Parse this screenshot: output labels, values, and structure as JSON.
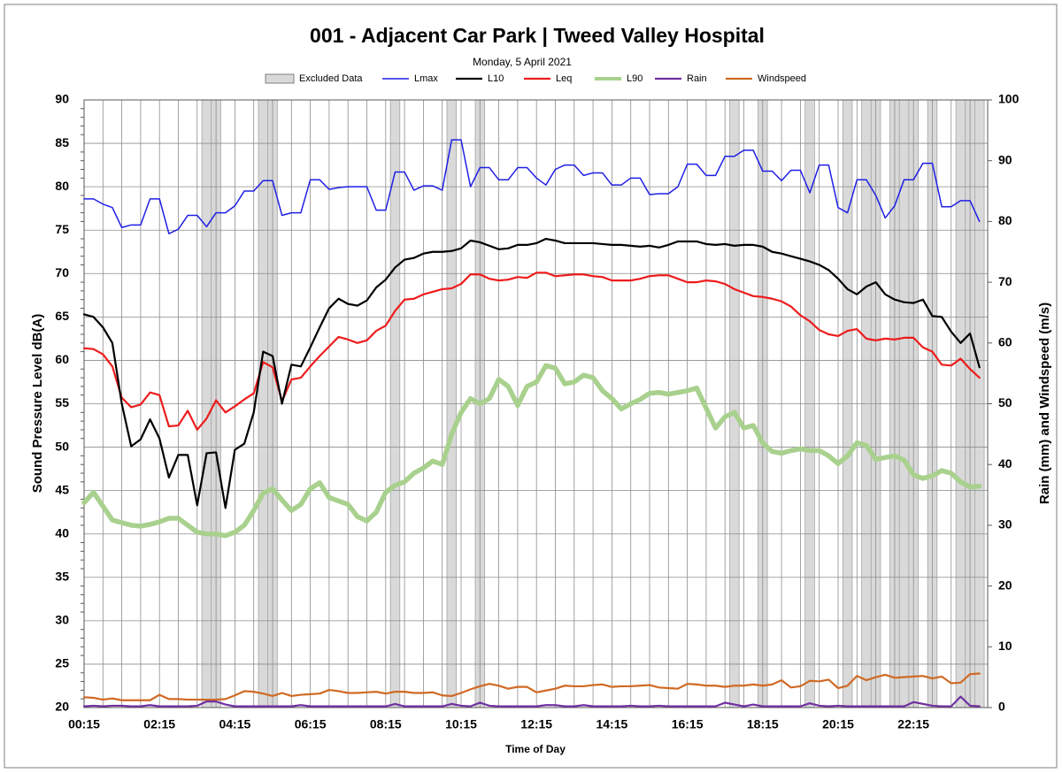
{
  "chart_data": {
    "type": "line",
    "title": "001 - Adjacent Car Park | Tweed Valley Hospital",
    "subtitle": "Monday, 5 April 2021",
    "x_label": "Time of Day",
    "y_label": "Sound Pressure Level dB(A)",
    "y2_label": "Rain (mm) and Windspeed (m/s)",
    "categories": [
      "00:15",
      null,
      null,
      null,
      null,
      null,
      null,
      null,
      "02:15",
      null,
      null,
      null,
      null,
      null,
      null,
      null,
      "04:15",
      null,
      null,
      null,
      null,
      null,
      null,
      null,
      "06:15",
      null,
      null,
      null,
      null,
      null,
      null,
      null,
      "08:15",
      null,
      null,
      null,
      null,
      null,
      null,
      null,
      "10:15",
      null,
      null,
      null,
      null,
      null,
      null,
      null,
      "12:15",
      null,
      null,
      null,
      null,
      null,
      null,
      null,
      "14:15",
      null,
      null,
      null,
      null,
      null,
      null,
      null,
      "16:15",
      null,
      null,
      null,
      null,
      null,
      null,
      null,
      "18:15",
      null,
      null,
      null,
      null,
      null,
      null,
      null,
      "20:15",
      null,
      null,
      null,
      null,
      null,
      null,
      null,
      "22:15",
      null,
      null,
      null,
      null,
      null,
      null,
      null
    ],
    "ylim": [
      20,
      90
    ],
    "yticks": [
      20,
      25,
      30,
      35,
      40,
      45,
      50,
      55,
      60,
      65,
      70,
      75,
      80,
      85,
      90
    ],
    "y2lim": [
      0,
      100
    ],
    "y2ticks": [
      0,
      10,
      20,
      30,
      40,
      50,
      60,
      70,
      80,
      90,
      100
    ],
    "grid": true,
    "excluded": {
      "name": "Excluded Data",
      "color": "#d9d9d9",
      "values": [
        0,
        0,
        0,
        0,
        0,
        0,
        0,
        0,
        0,
        0,
        0,
        0,
        0,
        1,
        1,
        0,
        0,
        0,
        0,
        1,
        1,
        0,
        0,
        0,
        0,
        0,
        0,
        0,
        0,
        0,
        0,
        0,
        0,
        1,
        0,
        0,
        0,
        0,
        0,
        1,
        0,
        0,
        1,
        0,
        0,
        0,
        0,
        0,
        0,
        0,
        0,
        0,
        0,
        0,
        0,
        0,
        0,
        0,
        0,
        0,
        0,
        0,
        0,
        0,
        0,
        0,
        0,
        0,
        0,
        1,
        0,
        0,
        1,
        0,
        0,
        0,
        0,
        1,
        0,
        0,
        0,
        1,
        0,
        1,
        1,
        0,
        1,
        1,
        1,
        0,
        1,
        0,
        0,
        1,
        1,
        1
      ]
    },
    "series": [
      {
        "name": "Lmax",
        "color": "#1f1fe6",
        "width": 1.5,
        "values": [
          78.6,
          78.6,
          78.0,
          77.6,
          75.3,
          75.6,
          75.6,
          78.6,
          78.6,
          74.6,
          75.1,
          76.7,
          76.7,
          75.4,
          77.0,
          77.0,
          77.8,
          79.5,
          79.5,
          80.7,
          80.7,
          76.7,
          77.0,
          77.0,
          80.8,
          80.8,
          79.7,
          79.9,
          80.0,
          80.0,
          80.0,
          77.3,
          77.3,
          81.7,
          81.7,
          79.6,
          80.1,
          80.1,
          79.6,
          85.4,
          85.4,
          80.0,
          82.2,
          82.2,
          80.8,
          80.8,
          82.2,
          82.2,
          81.0,
          80.2,
          82.0,
          82.5,
          82.5,
          81.3,
          81.6,
          81.6,
          80.2,
          80.2,
          81.0,
          81.0,
          79.1,
          79.2,
          79.2,
          80.0,
          82.6,
          82.6,
          81.3,
          81.3,
          83.5,
          83.5,
          84.2,
          84.2,
          81.8,
          81.8,
          80.7,
          81.9,
          81.9,
          79.3,
          82.5,
          82.5,
          77.6,
          77.0,
          80.8,
          80.8,
          79.0,
          76.4,
          77.8,
          80.8,
          80.8,
          82.7,
          82.7,
          77.7,
          77.7,
          78.4,
          78.4,
          76.0
        ]
      },
      {
        "name": "L10",
        "color": "#000000",
        "width": 2.2,
        "values": [
          65.3,
          65.0,
          63.8,
          62.0,
          55.0,
          50.1,
          50.9,
          53.2,
          51.0,
          46.5,
          49.1,
          49.1,
          43.3,
          49.3,
          49.4,
          43.0,
          49.7,
          50.4,
          54.0,
          61.0,
          60.5,
          55.0,
          59.5,
          59.3,
          61.5,
          63.8,
          66.0,
          67.1,
          66.5,
          66.3,
          66.9,
          68.4,
          69.3,
          70.7,
          71.6,
          71.8,
          72.3,
          72.5,
          72.5,
          72.6,
          72.9,
          73.8,
          73.6,
          73.2,
          72.8,
          72.9,
          73.3,
          73.3,
          73.5,
          74.0,
          73.8,
          73.5,
          73.5,
          73.5,
          73.5,
          73.4,
          73.3,
          73.3,
          73.2,
          73.1,
          73.2,
          73.0,
          73.3,
          73.7,
          73.7,
          73.7,
          73.4,
          73.3,
          73.4,
          73.2,
          73.3,
          73.3,
          73.1,
          72.5,
          72.3,
          72.0,
          71.7,
          71.4,
          71.0,
          70.4,
          69.4,
          68.2,
          67.6,
          68.5,
          69.0,
          67.6,
          67.0,
          66.7,
          66.6,
          67.0,
          65.1,
          65.0,
          63.3,
          62.0,
          63.1,
          59.2
        ]
      },
      {
        "name": "Leq",
        "color": "#ee1c1c",
        "width": 2.2,
        "values": [
          61.4,
          61.3,
          60.7,
          59.3,
          55.7,
          54.6,
          54.9,
          56.3,
          56.0,
          52.4,
          52.5,
          54.2,
          52.0,
          53.3,
          55.4,
          54.0,
          54.7,
          55.5,
          56.2,
          59.8,
          59.2,
          55.3,
          57.8,
          58.0,
          59.3,
          60.5,
          61.6,
          62.7,
          62.4,
          62.0,
          62.3,
          63.4,
          64.0,
          65.7,
          67.0,
          67.1,
          67.6,
          67.9,
          68.2,
          68.3,
          68.8,
          69.9,
          69.9,
          69.4,
          69.2,
          69.3,
          69.6,
          69.5,
          70.1,
          70.1,
          69.7,
          69.8,
          69.9,
          69.9,
          69.7,
          69.6,
          69.2,
          69.2,
          69.2,
          69.4,
          69.7,
          69.8,
          69.8,
          69.4,
          69.0,
          69.0,
          69.2,
          69.1,
          68.8,
          68.2,
          67.8,
          67.4,
          67.3,
          67.1,
          66.8,
          66.2,
          65.2,
          64.5,
          63.5,
          63.0,
          62.8,
          63.4,
          63.6,
          62.5,
          62.3,
          62.5,
          62.4,
          62.6,
          62.6,
          61.5,
          61.0,
          59.5,
          59.4,
          60.2,
          59.0,
          58.0
        ]
      },
      {
        "name": "L90",
        "color": "#a9d18e",
        "width": 5.5,
        "values": [
          43.6,
          44.8,
          43.2,
          41.6,
          41.3,
          41.0,
          40.9,
          41.1,
          41.4,
          41.8,
          41.8,
          41.0,
          40.2,
          40.0,
          40.0,
          39.8,
          40.2,
          41.0,
          42.7,
          44.7,
          45.2,
          43.9,
          42.7,
          43.4,
          45.2,
          45.9,
          44.2,
          43.8,
          43.4,
          42.0,
          41.5,
          42.5,
          44.8,
          45.6,
          46.0,
          47.0,
          47.6,
          48.4,
          48.0,
          51.5,
          54.0,
          55.6,
          55.0,
          55.6,
          57.8,
          57.0,
          54.8,
          57.0,
          57.5,
          59.4,
          59.1,
          57.3,
          57.5,
          58.3,
          58.0,
          56.5,
          55.6,
          54.4,
          55.0,
          55.5,
          56.2,
          56.3,
          56.1,
          56.3,
          56.5,
          56.8,
          54.5,
          52.2,
          53.5,
          54.0,
          52.2,
          52.5,
          50.5,
          49.5,
          49.3,
          49.6,
          49.8,
          49.6,
          49.6,
          49.0,
          48.1,
          49.0,
          50.5,
          50.2,
          48.6,
          48.8,
          49.0,
          48.5,
          46.8,
          46.4,
          46.7,
          47.3,
          47.0,
          46.0,
          45.4,
          45.5
        ]
      },
      {
        "name": "Rain",
        "color": "#7030a0",
        "width": 2.2,
        "axis": "y2",
        "values": [
          0.2,
          0.3,
          0.2,
          0.3,
          0.3,
          0.2,
          0.2,
          0.4,
          0.2,
          0.2,
          0.2,
          0.2,
          0.3,
          1.0,
          1.0,
          0.5,
          0.2,
          0.2,
          0.2,
          0.2,
          0.2,
          0.2,
          0.2,
          0.4,
          0.2,
          0.2,
          0.2,
          0.2,
          0.2,
          0.2,
          0.2,
          0.2,
          0.2,
          0.6,
          0.2,
          0.2,
          0.2,
          0.2,
          0.2,
          0.6,
          0.3,
          0.2,
          0.8,
          0.3,
          0.2,
          0.2,
          0.2,
          0.2,
          0.2,
          0.4,
          0.4,
          0.2,
          0.2,
          0.4,
          0.2,
          0.2,
          0.2,
          0.2,
          0.3,
          0.2,
          0.2,
          0.3,
          0.2,
          0.2,
          0.2,
          0.2,
          0.2,
          0.2,
          0.8,
          0.5,
          0.2,
          0.5,
          0.2,
          0.2,
          0.2,
          0.2,
          0.2,
          0.7,
          0.3,
          0.2,
          0.3,
          0.2,
          0.2,
          0.2,
          0.2,
          0.2,
          0.2,
          0.2,
          0.9,
          0.6,
          0.3,
          0.2,
          0.2,
          1.8,
          0.3,
          0.2
        ]
      },
      {
        "name": "Windspeed",
        "color": "#d06a24",
        "width": 2.2,
        "axis": "y2",
        "values": [
          1.7,
          1.6,
          1.3,
          1.5,
          1.2,
          1.2,
          1.2,
          1.2,
          2.1,
          1.4,
          1.4,
          1.3,
          1.3,
          1.3,
          1.3,
          1.4,
          2.0,
          2.7,
          2.6,
          2.3,
          1.9,
          2.4,
          1.9,
          2.1,
          2.2,
          2.3,
          2.9,
          2.7,
          2.4,
          2.4,
          2.5,
          2.6,
          2.3,
          2.6,
          2.6,
          2.4,
          2.4,
          2.5,
          2.0,
          1.9,
          2.4,
          3.0,
          3.5,
          3.9,
          3.6,
          3.1,
          3.4,
          3.4,
          2.5,
          2.8,
          3.1,
          3.6,
          3.5,
          3.5,
          3.7,
          3.8,
          3.4,
          3.5,
          3.5,
          3.6,
          3.7,
          3.3,
          3.2,
          3.1,
          3.9,
          3.8,
          3.6,
          3.6,
          3.4,
          3.6,
          3.6,
          3.8,
          3.6,
          3.8,
          4.5,
          3.3,
          3.5,
          4.4,
          4.3,
          4.6,
          3.2,
          3.6,
          5.2,
          4.5,
          5.0,
          5.4,
          4.9,
          5.0,
          5.1,
          5.2,
          4.8,
          5.1,
          4.0,
          4.1,
          5.5,
          5.6
        ]
      }
    ]
  }
}
